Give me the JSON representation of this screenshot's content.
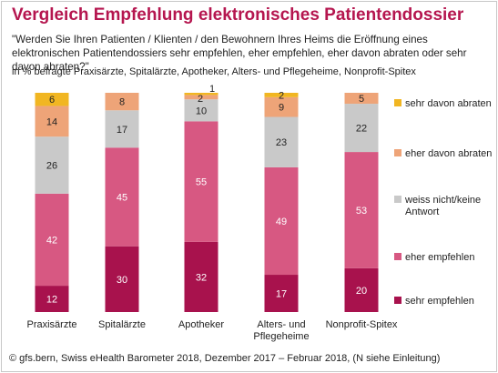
{
  "title": "Vergleich Empfehlung elektronisches Patientendossier",
  "question": "\"Werden Sie Ihren Patienten / Klienten / den Bewohnern Ihres Heims die Eröffnung eines elektronischen Patientendossiers sehr empfehlen, eher empfehlen, eher davon abraten oder sehr davon abraten?\"",
  "subtitle": "in % befragte Praxisärzte, Spitalärzte, Apotheker, Alters- und Pflegeheime, Nonprofit-Spitex",
  "footer": "©   gfs.bern, Swiss eHealth Barometer 2018, Dezember 2017 – Februar 2018, (N siehe Einleitung)",
  "chart_data": {
    "type": "bar",
    "stacked": true,
    "categories": [
      "Praxisärzte",
      "Spitalärzte",
      "Apotheker",
      "Alters- und Pflegeheime",
      "Nonprofit-Spitex"
    ],
    "series": [
      {
        "name": "sehr empfehlen",
        "color": "#a8124d",
        "values": [
          12,
          30,
          32,
          17,
          20
        ]
      },
      {
        "name": "eher empfehlen",
        "color": "#d75882",
        "values": [
          42,
          45,
          55,
          49,
          53
        ]
      },
      {
        "name": "weiss nicht/keine Antwort",
        "color": "#c9c9c9",
        "values": [
          26,
          17,
          10,
          23,
          22
        ]
      },
      {
        "name": "eher davon abraten",
        "color": "#eea478",
        "values": [
          14,
          8,
          2,
          9,
          5
        ]
      },
      {
        "name": "sehr davon abraten",
        "color": "#f1b622",
        "values": [
          6,
          null,
          1,
          2,
          null
        ]
      }
    ],
    "ylim": [
      0,
      100
    ],
    "legend": "right"
  }
}
